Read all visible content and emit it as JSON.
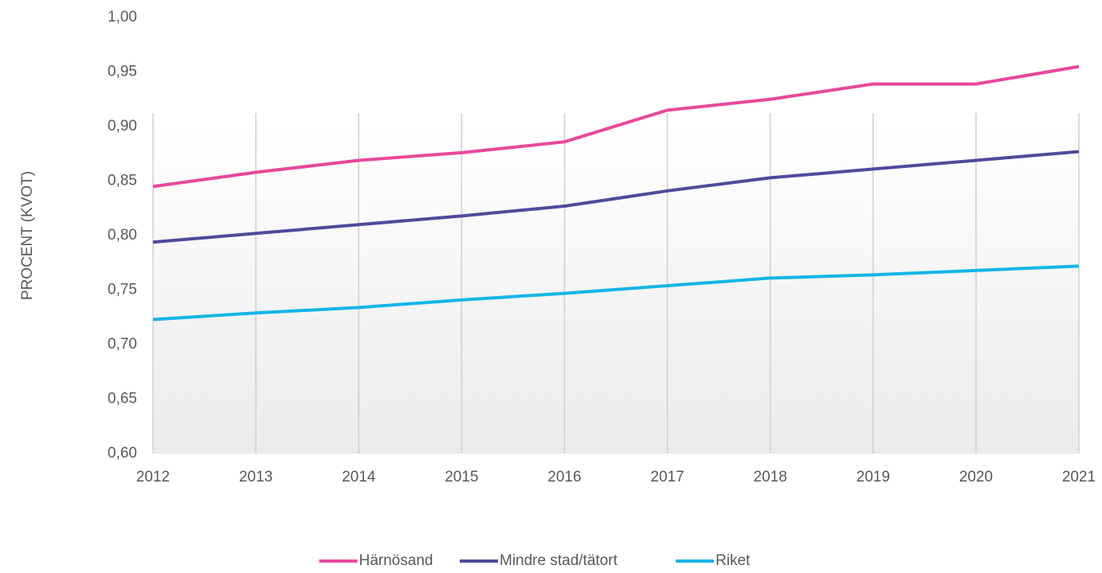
{
  "chart_data": {
    "type": "line",
    "y_label": "PROCENT (KVOT)",
    "x": [
      2012,
      2013,
      2014,
      2015,
      2016,
      2017,
      2018,
      2019,
      2020,
      2021
    ],
    "xlim": [
      2012,
      2021
    ],
    "xticks": [
      2012,
      2013,
      2014,
      2015,
      2016,
      2017,
      2018,
      2019,
      2020,
      2021
    ],
    "ylim": [
      0.6,
      1.0
    ],
    "yticks": [
      {
        "value": 0.6,
        "label": "0,60"
      },
      {
        "value": 0.65,
        "label": "0,65"
      },
      {
        "value": 0.7,
        "label": "0,70"
      },
      {
        "value": 0.75,
        "label": "0,75"
      },
      {
        "value": 0.8,
        "label": "0,80"
      },
      {
        "value": 0.85,
        "label": "0,85"
      },
      {
        "value": 0.9,
        "label": "0,90"
      },
      {
        "value": 0.95,
        "label": "0,95"
      },
      {
        "value": 1.0,
        "label": "1,00"
      }
    ],
    "grid": true,
    "legend": "bottom",
    "series": [
      {
        "name": "Härnösand",
        "color": "#e8489a",
        "values": [
          0.845,
          0.858,
          0.869,
          0.876,
          0.886,
          0.915,
          0.925,
          0.939,
          0.939,
          0.955
        ]
      },
      {
        "name": "Mindre stad/tätort",
        "color": "#4f4a9c",
        "values": [
          0.794,
          0.802,
          0.81,
          0.818,
          0.827,
          0.841,
          0.853,
          0.861,
          0.869,
          0.877
        ]
      },
      {
        "name": "Riket",
        "color": "#12b5e6",
        "values": [
          0.723,
          0.729,
          0.734,
          0.741,
          0.747,
          0.754,
          0.761,
          0.764,
          0.768,
          0.772
        ]
      }
    ]
  }
}
